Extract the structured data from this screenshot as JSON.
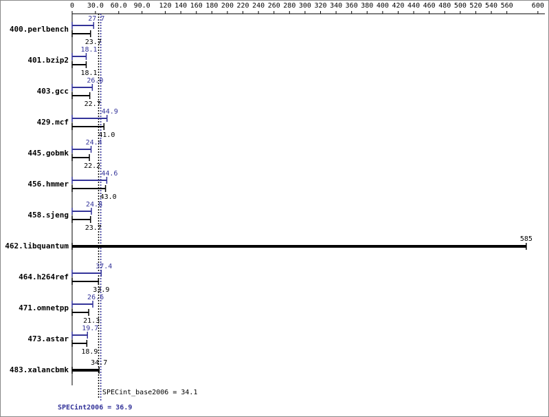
{
  "chart_data": {
    "type": "bar",
    "categories": [
      "400.perlbench",
      "401.bzip2",
      "403.gcc",
      "429.mcf",
      "445.gobmk",
      "456.hmmer",
      "458.sjeng",
      "462.libquantum",
      "464.h264ref",
      "471.omnetpp",
      "473.astar",
      "483.xalancbmk"
    ],
    "series": [
      {
        "name": "SPECint2006",
        "color": "#333399",
        "values": [
          27.7,
          18.1,
          26.0,
          44.9,
          24.4,
          44.6,
          24.8,
          null,
          37.4,
          26.6,
          19.7,
          null
        ],
        "value_labels": [
          "27.7",
          "18.1",
          "26.0",
          "44.9",
          "24.4",
          "44.6",
          "24.8",
          null,
          "37.4",
          "26.6",
          "19.7",
          null
        ]
      },
      {
        "name": "SPECint_base2006",
        "color": "#000000",
        "values": [
          23.7,
          18.1,
          22.7,
          41.0,
          22.2,
          43.0,
          23.7,
          585,
          33.9,
          21.3,
          18.9,
          34.7
        ],
        "value_labels": [
          "23.7",
          "18.1",
          "22.7",
          "41.0",
          "22.2",
          "43.0",
          "23.7",
          "585",
          "33.9",
          "21.3",
          "18.9",
          "34.7"
        ]
      }
    ],
    "reference_lines": [
      {
        "label": "SPECint_base2006 = 34.1",
        "value": 34.1,
        "color": "#000000"
      },
      {
        "label": "SPECint2006 = 36.9",
        "value": 36.9,
        "color": "#333399"
      }
    ],
    "xlim": [
      0,
      609
    ],
    "xticks": [
      0,
      {
        "value": 30,
        "label": "30.0"
      },
      {
        "value": 60,
        "label": "60.0"
      },
      {
        "value": 90,
        "label": "90.0"
      },
      120,
      140,
      160,
      180,
      200,
      220,
      240,
      260,
      280,
      300,
      320,
      340,
      360,
      380,
      400,
      420,
      440,
      460,
      480,
      500,
      520,
      540,
      560,
      600
    ]
  }
}
